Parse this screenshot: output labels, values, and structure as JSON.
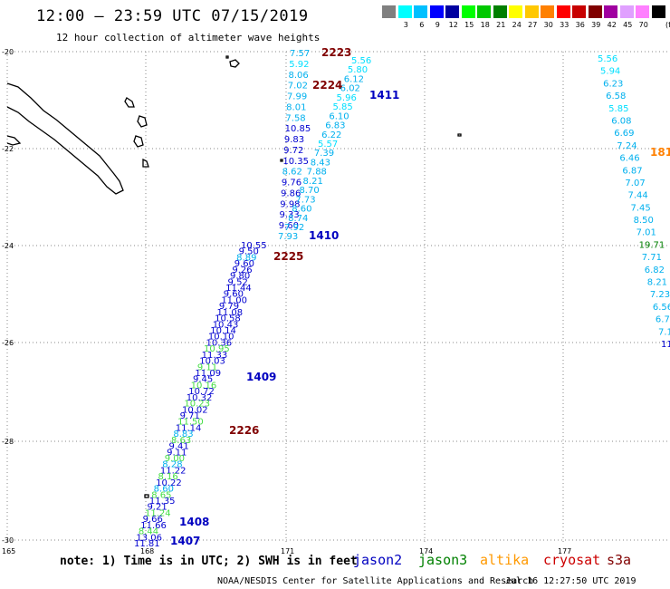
{
  "header": {
    "title": "12:00 — 23:59 UTC 07/15/2019",
    "subtitle": "12 hour collection of altimeter wave heights"
  },
  "legend": {
    "swatches": [
      {
        "color": "#808080",
        "label": ""
      },
      {
        "color": "#00ffff",
        "label": "3"
      },
      {
        "color": "#00c0ff",
        "label": "6"
      },
      {
        "color": "#0000ff",
        "label": "9"
      },
      {
        "color": "#0000a0",
        "label": "12"
      },
      {
        "color": "#00ff00",
        "label": "15"
      },
      {
        "color": "#00c800",
        "label": "18"
      },
      {
        "color": "#008000",
        "label": "21"
      },
      {
        "color": "#ffff00",
        "label": "24"
      },
      {
        "color": "#ffc800",
        "label": "27"
      },
      {
        "color": "#ff8000",
        "label": "30"
      },
      {
        "color": "#ff0000",
        "label": "33"
      },
      {
        "color": "#c80000",
        "label": "36"
      },
      {
        "color": "#800000",
        "label": "39"
      },
      {
        "color": "#a000a0",
        "label": "42"
      },
      {
        "color": "#e0a0ff",
        "label": "45"
      },
      {
        "color": "#ff80ff",
        "label": "70"
      },
      {
        "color": "#000000",
        "label": ""
      }
    ],
    "unit": "(ft)"
  },
  "axes": {
    "lat_labels": [
      "-20",
      "-22",
      "-24",
      "-26",
      "-28",
      "-30"
    ],
    "lon_labels": [
      "165",
      "168",
      "171",
      "174",
      "177"
    ]
  },
  "passes": [
    {
      "id": "2223",
      "color": "#800000"
    },
    {
      "id": "2224",
      "color": "#800000"
    },
    {
      "id": "1411",
      "color": "#0000c0"
    },
    {
      "id": "1410",
      "color": "#0000c0"
    },
    {
      "id": "2225",
      "color": "#800000"
    },
    {
      "id": "1409",
      "color": "#0000c0"
    },
    {
      "id": "2226",
      "color": "#800000"
    },
    {
      "id": "1408",
      "color": "#0000c0"
    },
    {
      "id": "1407",
      "color": "#0000c0"
    },
    {
      "id": "181",
      "color": "#ff8000"
    }
  ],
  "tracks": {
    "left_cyan": [
      "7.57",
      "5.92",
      "8.06",
      "7.02",
      "7.99",
      "8.01",
      "7.58",
      "10.85",
      "9.83",
      "9.72",
      "10.35",
      "8.62",
      "9.76",
      "9.86",
      "9.98",
      "9.33",
      "9.60",
      "7.93"
    ],
    "right_cyan": [
      "5.56",
      "5.80",
      "6.12",
      "6.02",
      "5.96",
      "5.85",
      "6.10",
      "6.83",
      "6.22",
      "5.57",
      "7.39",
      "8.43",
      "7.88",
      "8.21",
      "8.70",
      "7.73",
      "8.60",
      "8.74",
      "7.92"
    ],
    "south_track": [
      "10.55",
      "9.50",
      "8.89",
      "9.60",
      "9.26",
      "9.80",
      "9.52",
      "11.44",
      "9.60",
      "11.00",
      "9.79",
      "11.08",
      "10.58",
      "10.43",
      "10.14",
      "10.10",
      "10.36",
      "10.95",
      "11.33",
      "10.03",
      "9.11",
      "11.09",
      "9.45",
      "10.16",
      "10.72",
      "10.32",
      "10.23",
      "10.02",
      "9.71",
      "11.50",
      "11.14",
      "8.83",
      "8.63",
      "9.41",
      "9.11",
      "9.00",
      "8.28",
      "11.22",
      "8.16",
      "10.22",
      "8.60",
      "8.65",
      "11.35",
      "9.21",
      "11.24",
      "9.66",
      "11.66",
      "8.44",
      "13.06",
      "11.81"
    ],
    "east_track": [
      "5.56",
      "5.94",
      "6.23",
      "6.58",
      "5.85",
      "6.08",
      "6.69",
      "7.24",
      "6.46",
      "6.87",
      "7.07",
      "7.44",
      "7.45",
      "8.50",
      "7.01",
      "19.71",
      "7.71",
      "6.82",
      "8.21",
      "7.23",
      "6.56",
      "6.7",
      "7.1",
      "11"
    ]
  },
  "footer": {
    "note": "note: 1) Time is in UTC; 2) SWH is in feet",
    "satellites": [
      {
        "name": "jason2",
        "color": "#0000c0"
      },
      {
        "name": "jason3",
        "color": "#008000"
      },
      {
        "name": "altika",
        "color": "#ff9900"
      },
      {
        "name": "cryosat",
        "color": "#cc0000"
      },
      {
        "name": "s3a",
        "color": "#800000"
      }
    ],
    "credit": "NOAA/NESDIS Center for Satellite Applications and Research",
    "timestamp": "Jul 16 12:27:50 UTC 2019"
  }
}
